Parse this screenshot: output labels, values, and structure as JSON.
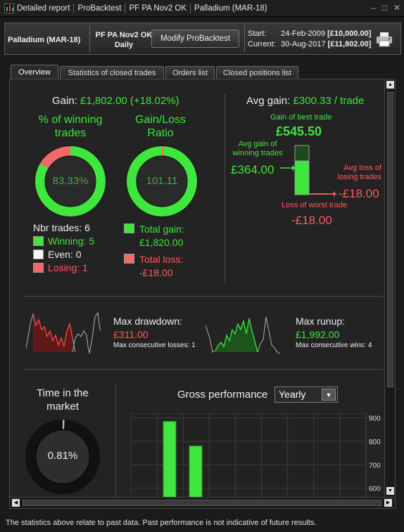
{
  "window": {
    "title_parts": [
      "Detailed report",
      "ProBacktest",
      "PF PA Nov2 OK",
      "Palladium (MAR-18)"
    ],
    "controls": [
      "–",
      "□",
      "✕"
    ]
  },
  "header": {
    "instrument": "Palladium (MAR-18)",
    "strategy_name": "PF PA Nov2 OK",
    "period": "Daily",
    "modify_button": "Modify ProBacktest",
    "start_label": "Start:",
    "start_date": "24-Feb-2009",
    "start_value": "[£10,000.00]",
    "current_label": "Current:",
    "current_date": "30-Aug-2017",
    "current_value": "[£11,802.00]"
  },
  "tabs": [
    "Overview",
    "Statistics of closed trades",
    "Orders list",
    "Closed positions list"
  ],
  "overview": {
    "gain_label": "Gain:",
    "gain_value": "£1,802.00 (+18.02%)",
    "winning_title_1": "% of winning",
    "winning_title_2": "trades",
    "winning_pct": "83.33%",
    "winning_fraction": 0.8333,
    "ratio_title_1": "Gain/Loss",
    "ratio_title_2": "Ratio",
    "ratio_value": "101.11",
    "ratio_loss_fraction": 0.0098,
    "nbr_trades": "Nbr trades: 6",
    "winning": "Winning: 5",
    "even": "Even: 0",
    "losing": "Losing: 1",
    "total_gain_label": "Total gain:",
    "total_gain_value": "£1,820.00",
    "total_loss_label": "Total loss:",
    "total_loss_value": "-£18.00",
    "avg_gain_label": "Avg gain:",
    "avg_gain_value": "£300.33 / trade",
    "best_trade_label": "Gain of best trade",
    "best_trade_value": "£545.50",
    "avg_win_label_1": "Avg gain of",
    "avg_win_label_2": "winning trades",
    "avg_win_value": "£364.00",
    "avg_loss_label_1": "Avg loss of",
    "avg_loss_label_2": "losing trades",
    "avg_loss_value": "-£18.00",
    "worst_trade_label": "Loss of worst trade",
    "worst_trade_value": "-£18.00",
    "drawdown_label": "Max drawdown:",
    "drawdown_value": "£311.00",
    "consec_losses": "Max consecutive losses: 1",
    "runup_label": "Max runup:",
    "runup_value": "£1,992.00",
    "consec_wins": "Max consecutive wins: 4",
    "time_market_1": "Time in the",
    "time_market_2": "market",
    "time_market_value": "0.81%",
    "time_market_fraction": 0.0081,
    "gross_perf_label": "Gross performance",
    "gross_perf_period": "Yearly"
  },
  "colors": {
    "green": "#3ee63e",
    "red": "#ff5a5a",
    "ring_red": "#f06a6a"
  },
  "chart_data": {
    "type": "bar",
    "title": "Gross performance",
    "y_ticks": [
      "900",
      "800",
      "700",
      "600"
    ],
    "ylim": [
      560,
      920
    ],
    "values": [
      885,
      780
    ],
    "categories": [
      "",
      ""
    ]
  },
  "footer": {
    "disclaimer": "The statistics above relate to past data. Past performance is not indicative of future results."
  }
}
